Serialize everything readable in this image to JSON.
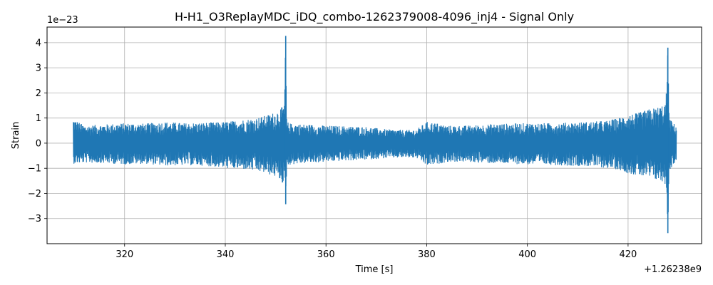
{
  "chart_data": {
    "type": "line",
    "title": "H-H1_O3ReplayMDC_iDQ_combo-1262379008-4096_inj4 - Signal Only",
    "xlabel": "Time [s]",
    "ylabel": "Strain",
    "x_offset_label": "+1.26238e9",
    "y_scale_label": "1e−23",
    "xlim": [
      304.6,
      434.6
    ],
    "ylim": [
      -4.0,
      4.62
    ],
    "grid": true,
    "x_ticks": [
      320,
      340,
      360,
      380,
      400,
      420
    ],
    "x_tick_labels": [
      "320",
      "340",
      "360",
      "380",
      "400",
      "420"
    ],
    "y_ticks": [
      -3,
      -2,
      -1,
      0,
      1,
      2,
      3,
      4
    ],
    "y_tick_labels": [
      "−3",
      "−2",
      "−1",
      "0",
      "1",
      "2",
      "3",
      "4"
    ],
    "series_color": "#1f77b4",
    "series": [
      {
        "x": [
          309.8,
          312,
          316,
          320,
          324,
          328,
          332,
          336,
          340,
          344,
          346,
          348,
          350,
          351,
          351.7,
          352.0,
          352.2,
          353,
          356,
          360,
          364,
          368,
          372,
          376,
          378,
          380,
          382,
          384,
          388,
          392,
          396,
          400,
          404,
          408,
          412,
          416,
          418,
          420,
          422,
          424,
          426,
          427.5,
          427.9,
          428.2,
          429,
          429.6
        ],
        "upper": [
          0.98,
          0.7,
          0.75,
          0.8,
          0.78,
          0.85,
          0.8,
          0.82,
          0.85,
          0.95,
          1.0,
          1.1,
          1.25,
          1.4,
          1.5,
          4.27,
          0.85,
          0.78,
          0.75,
          0.7,
          0.68,
          0.65,
          0.55,
          0.52,
          0.55,
          0.85,
          0.8,
          0.7,
          0.7,
          0.75,
          0.78,
          0.8,
          0.8,
          0.82,
          0.85,
          0.9,
          1.0,
          1.15,
          1.2,
          1.35,
          1.45,
          1.6,
          3.8,
          1.0,
          0.8,
          0.7
        ],
        "lower": [
          -0.82,
          -0.78,
          -0.8,
          -0.85,
          -0.82,
          -0.9,
          -0.88,
          -0.9,
          -1.0,
          -1.05,
          -1.12,
          -1.2,
          -1.35,
          -1.5,
          -1.7,
          -2.43,
          -0.95,
          -0.85,
          -0.8,
          -0.75,
          -0.7,
          -0.66,
          -0.6,
          -0.58,
          -0.6,
          -0.9,
          -0.85,
          -0.75,
          -0.75,
          -0.8,
          -0.82,
          -0.85,
          -0.86,
          -0.9,
          -0.92,
          -1.0,
          -1.05,
          -1.2,
          -1.3,
          -1.4,
          -1.5,
          -1.65,
          -3.58,
          -1.1,
          -0.85,
          -0.75
        ]
      }
    ]
  }
}
